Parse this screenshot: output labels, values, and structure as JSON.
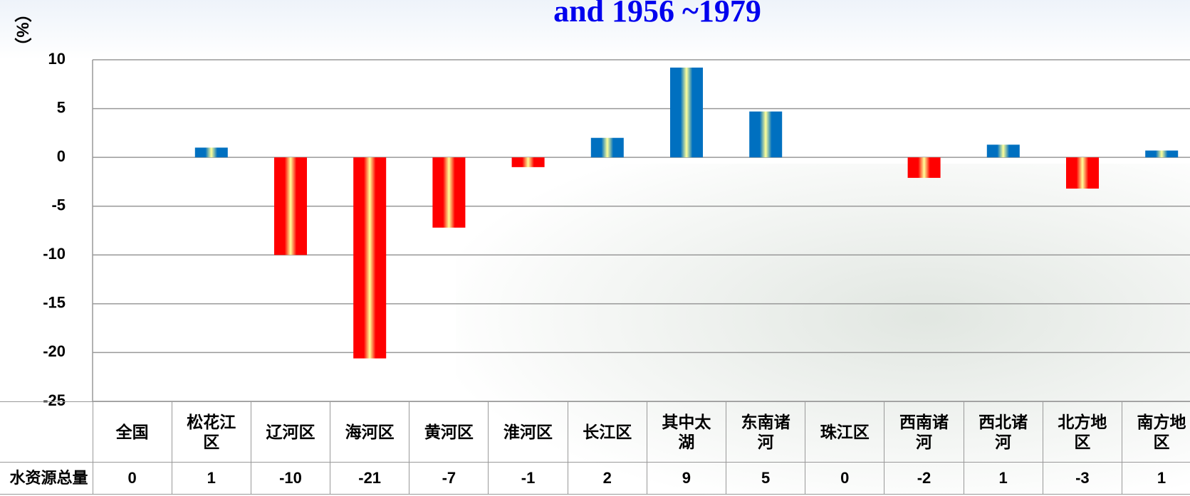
{
  "chart_data": {
    "type": "bar",
    "title": "and 1956 ~1979",
    "ylabel": "（%）",
    "row_label": "水资源总量",
    "categories": [
      "全国",
      "松花江区",
      "辽河区",
      "海河区",
      "黄河区",
      "淮河区",
      "长江区",
      "其中太湖",
      "东南诸河",
      "珠江区",
      "西南诸河",
      "西北诸河",
      "北方地区",
      "南方地区"
    ],
    "values": [
      0,
      1,
      -10,
      -20.6,
      -7.2,
      -1,
      2,
      9.2,
      4.7,
      0,
      -2.1,
      1.3,
      -3.2,
      0.7
    ],
    "value_labels": [
      "0",
      "1",
      "-10",
      "-21",
      "-7",
      "-1",
      "2",
      "9",
      "5",
      "0",
      "-2",
      "1",
      "-3",
      "1"
    ],
    "positive_color": "#0070c0",
    "negative_color": "#ff0000",
    "highlight_color": "#ffff99",
    "ylim": [
      -25,
      10
    ],
    "yticks": [
      10,
      5,
      0,
      -5,
      -10,
      -15,
      -20,
      -25
    ],
    "grid": true
  }
}
